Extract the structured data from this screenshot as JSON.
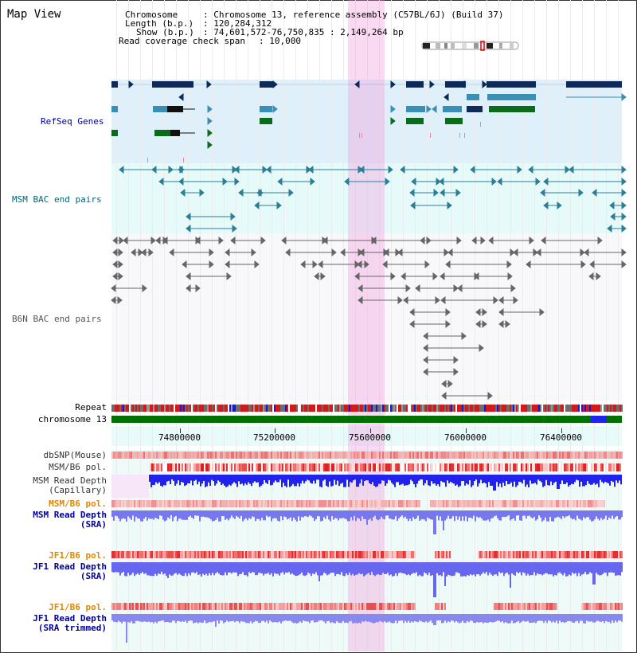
{
  "view_title": "Map View",
  "info": {
    "chromosome_key": "Chromosome",
    "chromosome_val": ": Chromosome 13, reference assembly (C57BL/6J) (Build 37)",
    "length_key": "Length (b.p.)",
    "length_val": ": 120,284,312",
    "show_key": "Show (b.p.)",
    "show_val": ": 74,601,572-76,750,835 : 2,149,264 bp",
    "read_key": "Read coverage check span",
    "read_val": ": 10,000"
  },
  "tracks": {
    "refseq": "RefSeq Genes",
    "msm_bac": "MSM BAC end pairs",
    "b6n_bac": "B6N BAC end pairs",
    "repeat": "Repeat",
    "chromosome": "chromosome 13",
    "dbsnp": "dbSNP(Mouse)",
    "msm_b6_pol_1": "MSM/B6 pol.",
    "msm_read_depth_cap": "MSM Read Depth\n(Capillary)",
    "msm_b6_pol_2": "MSM/B6 pol.",
    "msm_read_depth_sra": "MSM Read Depth\n(SRA)",
    "jf1_b6_pol_1": "JF1/B6 pol.",
    "jf1_read_depth_sra": "JF1 Read Depth\n(SRA)",
    "jf1_b6_pol_2": "JF1/B6 pol.",
    "jf1_read_depth_trim": "JF1 Read Depth\n(SRA trimmed)"
  },
  "axis_ticks": [
    "74800000",
    "75200000",
    "75600000",
    "76000000",
    "76400000"
  ],
  "colors": {
    "refseq_bg": "#dff0fa",
    "msm_bac_bg": "#e6fafa",
    "b6n_bac_bg": "#f7f7fb",
    "highlight": "#f3c7ec",
    "gene_dark": "#0d2a5a",
    "gene_mid": "#3a8fb5",
    "gene_green": "#0a6b1a",
    "chrom_bar": "#007000",
    "depth_blue": "#2222ee",
    "depth_light": "#7777ee",
    "label_blue": "#000099",
    "label_teal": "#006677",
    "label_gray": "#666666",
    "label_orange": "#dd8800"
  }
}
